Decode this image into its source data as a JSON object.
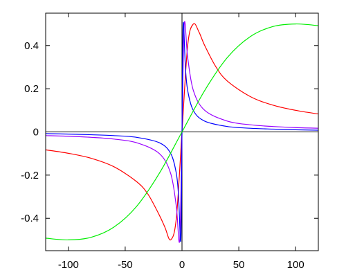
{
  "chart_data": {
    "type": "line",
    "title": "",
    "xlabel": "",
    "ylabel": "",
    "xlim": [
      -120,
      120
    ],
    "ylim": [
      -0.55,
      0.55
    ],
    "x_ticks": [
      -100,
      -50,
      0,
      50,
      100
    ],
    "x_tick_labels": [
      "-100",
      "-50",
      "0",
      "50",
      "100"
    ],
    "y_ticks": [
      -0.4,
      -0.2,
      0,
      0.2,
      0.4
    ],
    "y_tick_labels": [
      "-0.4",
      "-0.2",
      "0",
      "0.2",
      "0.4"
    ],
    "grid": false,
    "zero_axes": true,
    "series": [
      {
        "color": "#ff0000",
        "x": [
          -120,
          -100,
          -80,
          -60,
          -40,
          -30,
          -20,
          -15,
          -10,
          -5,
          0,
          5,
          10,
          15,
          20,
          30,
          40,
          60,
          80,
          100,
          120
        ],
        "y": [
          -0.083,
          -0.099,
          -0.122,
          -0.161,
          -0.23,
          -0.288,
          -0.385,
          -0.442,
          -0.5,
          -0.4,
          0,
          0.4,
          0.5,
          0.462,
          0.4,
          0.3,
          0.235,
          0.164,
          0.124,
          0.1,
          0.083
        ]
      },
      {
        "color": "#9900ff",
        "x": [
          -120,
          -100,
          -80,
          -60,
          -40,
          -20,
          -10,
          -5,
          -2,
          0,
          2,
          5,
          10,
          20,
          40,
          60,
          80,
          100,
          120
        ],
        "y": [
          -0.017,
          -0.02,
          -0.025,
          -0.033,
          -0.05,
          -0.1,
          -0.192,
          -0.345,
          -0.5,
          0,
          0.5,
          0.345,
          0.192,
          0.1,
          0.05,
          0.033,
          0.025,
          0.02,
          0.017
        ]
      },
      {
        "color": "#0000ff",
        "x": [
          -120,
          -100,
          -80,
          -60,
          -40,
          -20,
          -10,
          -5,
          -3,
          -1,
          0,
          1,
          3,
          5,
          10,
          20,
          40,
          60,
          80,
          100,
          120
        ],
        "y": [
          -0.008,
          -0.01,
          -0.013,
          -0.017,
          -0.025,
          -0.05,
          -0.099,
          -0.192,
          -0.3,
          -0.5,
          0,
          0.5,
          0.3,
          0.192,
          0.099,
          0.05,
          0.025,
          0.017,
          0.013,
          0.01,
          0.008
        ]
      },
      {
        "color": "#00ee00",
        "x": [
          -120,
          -100,
          -80,
          -60,
          -40,
          -20,
          0,
          20,
          40,
          60,
          80,
          100,
          120
        ],
        "y": [
          -0.492,
          -0.5,
          -0.488,
          -0.441,
          -0.345,
          -0.192,
          0,
          0.192,
          0.345,
          0.441,
          0.488,
          0.5,
          0.492
        ]
      }
    ]
  }
}
